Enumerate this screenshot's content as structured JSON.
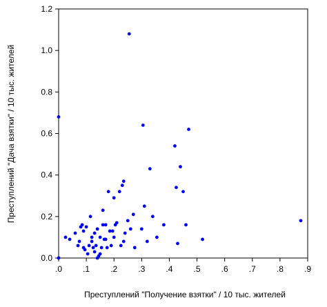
{
  "chart_data": {
    "type": "scatter",
    "xlabel": "Преступлений \"Получение взятки\" / 10 тыс. жителей",
    "ylabel": "Преступлений \"Дача взятки\" / 10 тыс. жителей",
    "xlim": [
      0.0,
      0.9
    ],
    "ylim": [
      0.0,
      1.2
    ],
    "x_ticks": [
      0.0,
      0.1,
      0.2,
      0.3,
      0.4,
      0.5,
      0.6,
      0.7,
      0.8,
      0.9
    ],
    "x_tick_labels": [
      ".0",
      ".1",
      ".2",
      ".3",
      ".4",
      ".5",
      ".6",
      ".7",
      ".8",
      ".9"
    ],
    "y_ticks": [
      0.0,
      0.2,
      0.4,
      0.6,
      0.8,
      1.0,
      1.2
    ],
    "y_tick_labels": [
      "0.0",
      "0.2",
      "0.4",
      "0.6",
      "0.8",
      "1.0",
      "1.2"
    ],
    "grid": false,
    "point_color": "#0000ff",
    "points": [
      [
        0.0,
        0.68
      ],
      [
        0.0,
        0.0
      ],
      [
        0.025,
        0.1
      ],
      [
        0.04,
        0.09
      ],
      [
        0.06,
        0.12
      ],
      [
        0.07,
        0.06
      ],
      [
        0.075,
        0.08
      ],
      [
        0.08,
        0.15
      ],
      [
        0.085,
        0.16
      ],
      [
        0.09,
        0.13
      ],
      [
        0.09,
        0.05
      ],
      [
        0.095,
        0.04
      ],
      [
        0.1,
        0.15
      ],
      [
        0.105,
        0.02
      ],
      [
        0.11,
        0.06
      ],
      [
        0.115,
        0.2
      ],
      [
        0.12,
        0.1
      ],
      [
        0.12,
        0.08
      ],
      [
        0.125,
        0.05
      ],
      [
        0.13,
        0.12
      ],
      [
        0.13,
        0.03
      ],
      [
        0.135,
        0.06
      ],
      [
        0.14,
        0.14
      ],
      [
        0.14,
        0.0
      ],
      [
        0.145,
        0.01
      ],
      [
        0.15,
        0.1
      ],
      [
        0.15,
        0.02
      ],
      [
        0.155,
        0.05
      ],
      [
        0.16,
        0.16
      ],
      [
        0.16,
        0.23
      ],
      [
        0.165,
        0.09
      ],
      [
        0.17,
        0.16
      ],
      [
        0.17,
        0.09
      ],
      [
        0.175,
        0.05
      ],
      [
        0.18,
        0.32
      ],
      [
        0.185,
        0.13
      ],
      [
        0.19,
        0.06
      ],
      [
        0.195,
        0.13
      ],
      [
        0.2,
        0.1
      ],
      [
        0.2,
        0.29
      ],
      [
        0.205,
        0.16
      ],
      [
        0.21,
        0.17
      ],
      [
        0.22,
        0.32
      ],
      [
        0.225,
        0.06
      ],
      [
        0.23,
        0.35
      ],
      [
        0.235,
        0.37
      ],
      [
        0.235,
        0.08
      ],
      [
        0.24,
        0.12
      ],
      [
        0.25,
        0.18
      ],
      [
        0.255,
        1.08
      ],
      [
        0.26,
        0.14
      ],
      [
        0.27,
        0.21
      ],
      [
        0.275,
        0.05
      ],
      [
        0.3,
        0.14
      ],
      [
        0.305,
        0.64
      ],
      [
        0.31,
        0.25
      ],
      [
        0.32,
        0.08
      ],
      [
        0.33,
        0.43
      ],
      [
        0.34,
        0.2
      ],
      [
        0.355,
        0.1
      ],
      [
        0.38,
        0.16
      ],
      [
        0.42,
        0.54
      ],
      [
        0.425,
        0.34
      ],
      [
        0.43,
        0.07
      ],
      [
        0.44,
        0.44
      ],
      [
        0.45,
        0.32
      ],
      [
        0.46,
        0.16
      ],
      [
        0.47,
        0.62
      ],
      [
        0.52,
        0.09
      ],
      [
        0.875,
        0.18
      ]
    ]
  }
}
